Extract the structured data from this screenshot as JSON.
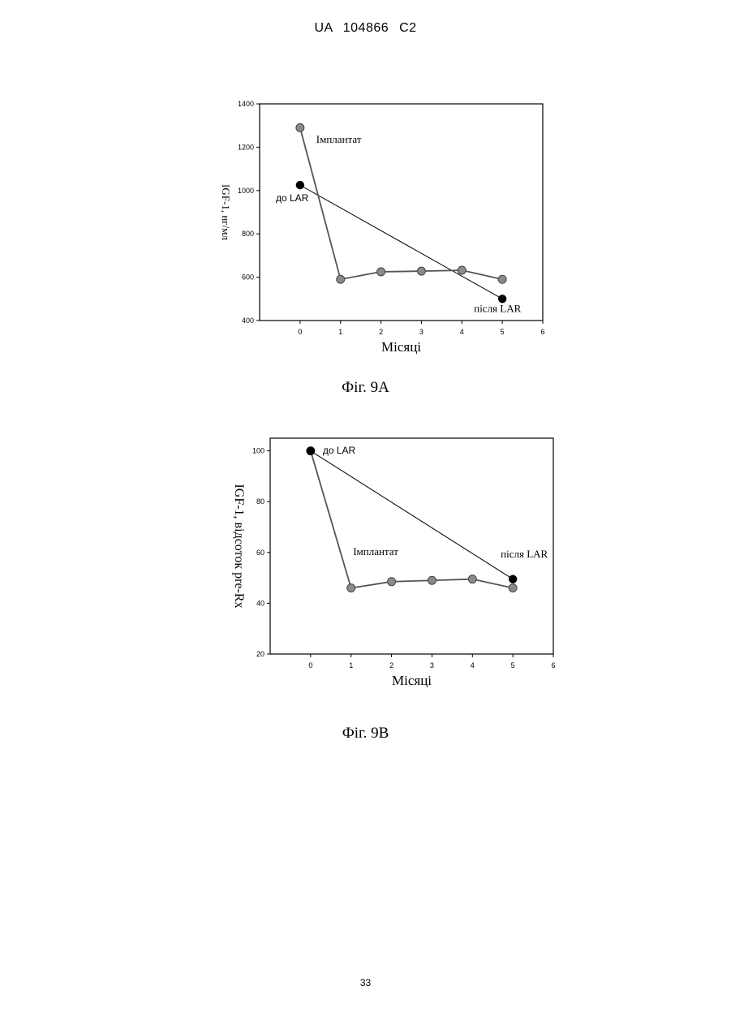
{
  "header": "UA 104866 C2",
  "page_number": "33",
  "figures": [
    {
      "caption": "Фіг. 9A"
    },
    {
      "caption": "Фіг. 9B"
    }
  ],
  "chart_data": [
    {
      "type": "line",
      "xlabel": "Місяці",
      "ylabel": "IGF-1, нг/мл",
      "xlim": [
        -1,
        6
      ],
      "ylim": [
        400,
        1400
      ],
      "xticks": [
        0,
        1,
        2,
        3,
        4,
        5,
        6
      ],
      "yticks": [
        400,
        600,
        800,
        1000,
        1200,
        1400
      ],
      "series": [
        {
          "name": "Імплантат",
          "x": [
            0,
            1,
            2,
            3,
            4,
            5
          ],
          "y": [
            1290,
            590,
            625,
            628,
            632,
            590
          ],
          "color": "#8a8a8a"
        },
        {
          "x": [
            0,
            5
          ],
          "y": [
            1025,
            500
          ],
          "color": "#000000"
        }
      ],
      "annotations": [
        {
          "text": "Імплантат",
          "x": 0.4,
          "y": 1220
        },
        {
          "text": "до LAR",
          "x": -0.6,
          "y": 950
        },
        {
          "text": "після LAR",
          "x": 4.3,
          "y": 440
        }
      ]
    },
    {
      "type": "line",
      "xlabel": "Місяці",
      "ylabel": "IGF-1, відсоток pre-Rx",
      "xlim": [
        -1,
        6
      ],
      "ylim": [
        20,
        105
      ],
      "xticks": [
        0,
        1,
        2,
        3,
        4,
        5,
        6
      ],
      "yticks": [
        20,
        40,
        60,
        80,
        100
      ],
      "series": [
        {
          "name": "Імплантат",
          "x": [
            0,
            1,
            2,
            3,
            4,
            5
          ],
          "y": [
            100,
            46,
            48.5,
            49,
            49.5,
            46
          ],
          "color": "#8a8a8a"
        },
        {
          "x": [
            0,
            5
          ],
          "y": [
            100,
            49.5
          ],
          "color": "#000000"
        }
      ],
      "annotations": [
        {
          "text": "до LAR",
          "x": 0.3,
          "y": 99
        },
        {
          "text": "Імплантат",
          "x": 1.05,
          "y": 59
        },
        {
          "text": "після LAR",
          "x": 4.7,
          "y": 58
        }
      ]
    }
  ]
}
